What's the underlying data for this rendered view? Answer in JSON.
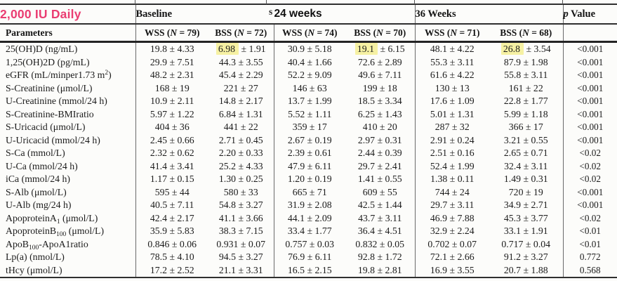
{
  "table": {
    "corner_label": "2,000 IU Daily",
    "corner_color": "#ea3d72",
    "fragment": "s",
    "highlight_color": "#f6f1a3",
    "param_header": "Parameters",
    "groups": [
      {
        "label": "Baseline"
      },
      {
        "label": "24 weeks"
      },
      {
        "label": "36 Weeks"
      }
    ],
    "p_header": {
      "italic": "p",
      "rest": " Value"
    },
    "sub_headers": [
      {
        "pre": "WSS (",
        "it": "N",
        "post": " = 79)"
      },
      {
        "pre": "BSS (",
        "it": "N",
        "post": " = 72)"
      },
      {
        "pre": "WSS (",
        "it": "N",
        "post": " = 74)"
      },
      {
        "pre": "BSS (",
        "it": "N",
        "post": " = 70)"
      },
      {
        "pre": "WSS (",
        "it": "N",
        "post": " = 71)"
      },
      {
        "pre": "BSS (",
        "it": "N",
        "post": " = 68)"
      }
    ],
    "rows": [
      {
        "param": [
          [
            "25(OH)D (ng/mL)",
            ""
          ]
        ],
        "values": [
          "19.8 ± 4.33",
          "6.98 ± 1.91",
          "30.9 ± 5.18",
          "19.1 ± 6.15",
          "48.1 ± 4.22",
          "26.8 ± 3.54"
        ],
        "p": "<0.001",
        "hl": [
          1,
          3,
          5
        ]
      },
      {
        "param": [
          [
            "1,25(OH)2D (pg/mL)",
            ""
          ]
        ],
        "values": [
          "29.9 ± 7.51",
          "44.3 ± 3.55",
          "40.4 ± 1.66",
          "72.6 ± 2.89",
          "55.3 ± 3.11",
          "87.9 ± 1.98"
        ],
        "p": "<0.001",
        "hl": []
      },
      {
        "param": [
          [
            "eGFR (mL/minper1.73 m",
            ""
          ],
          [
            "2",
            "sup"
          ],
          [
            ")",
            ""
          ]
        ],
        "values": [
          "48.2 ± 2.31",
          "45.4 ± 2.29",
          "52.2 ± 9.09",
          "49.6 ± 7.11",
          "61.6 ± 4.22",
          "55.8 ± 3.11"
        ],
        "p": "<0.001",
        "hl": []
      },
      {
        "param": [
          [
            "S-Creatinine (μmol/L)",
            ""
          ]
        ],
        "values": [
          "168 ± 19",
          "221 ± 27",
          "146 ± 63",
          "199 ± 18",
          "130 ± 13",
          "161 ± 22"
        ],
        "p": "<0.001",
        "hl": []
      },
      {
        "param": [
          [
            "U-Creatinine (mmol/24 h)",
            ""
          ]
        ],
        "values": [
          "10.9 ± 2.11",
          "14.8 ± 2.17",
          "13.7 ± 1.99",
          "18.5 ± 3.34",
          "17.6 ± 1.09",
          "22.8 ± 1.77"
        ],
        "p": "<0.001",
        "hl": []
      },
      {
        "param": [
          [
            "S-Creatinine-BMIratio",
            ""
          ]
        ],
        "values": [
          "5.97 ± 1.22",
          "6.84 ± 1.31",
          "5.52 ± 1.11",
          "6.25 ± 1.43",
          "5.01 ± 1.31",
          "5.99 ± 1.18"
        ],
        "p": "<0.001",
        "hl": []
      },
      {
        "param": [
          [
            "S-Uricacid (μmol/L)",
            ""
          ]
        ],
        "values": [
          "404 ± 36",
          "441 ± 22",
          "359 ± 17",
          "410 ± 20",
          "287 ± 32",
          "366 ± 17"
        ],
        "p": "<0.001",
        "hl": []
      },
      {
        "param": [
          [
            "U-Uricacid (mmol/24 h)",
            ""
          ]
        ],
        "values": [
          "2.45 ± 0.66",
          "2.71 ± 0.45",
          "2.67 ± 0.19",
          "2.97 ± 0.31",
          "2.91 ± 0.24",
          "3.21 ± 0.55"
        ],
        "p": "<0.001",
        "hl": []
      },
      {
        "param": [
          [
            "S-Ca (mmol/L)",
            ""
          ]
        ],
        "values": [
          "2.32 ± 0.62",
          "2.20 ± 0.33",
          "2.39 ± 0.61",
          "2.44 ± 0.39",
          "2.51 ± 0.16",
          "2.65 ± 0.71"
        ],
        "p": "<0.02",
        "hl": []
      },
      {
        "param": [
          [
            "U-Ca (mmol/24 h)",
            ""
          ]
        ],
        "values": [
          "41.4 ± 3.41",
          "25.2 ± 4.33",
          "47.9 ± 6.11",
          "29.7 ± 2.41",
          "52.4 ± 1.99",
          "32.4 ± 3.11"
        ],
        "p": "<0.02",
        "hl": []
      },
      {
        "param": [
          [
            "iCa (mmol/24 h)",
            ""
          ]
        ],
        "values": [
          "1.17 ± 0.15",
          "1.30 ± 0.25",
          "1.20 ± 0.19",
          "1.41 ± 0.55",
          "1.38 ± 0.11",
          "1.49 ± 0.31"
        ],
        "p": "<0.02",
        "hl": []
      },
      {
        "param": [
          [
            "S-Alb (μmol/L)",
            ""
          ]
        ],
        "values": [
          "595 ± 44",
          "580 ± 33",
          "665 ± 71",
          "609 ± 55",
          "744 ± 24",
          "720 ± 19"
        ],
        "p": "<0.001",
        "hl": []
      },
      {
        "param": [
          [
            "U-Alb (mg/24 h)",
            ""
          ]
        ],
        "values": [
          "40.5 ± 7.11",
          "54.8 ± 3.27",
          "31.9 ± 2.08",
          "42.5 ± 1.44",
          "29.7 ± 3.11",
          "34.9 ± 2.71"
        ],
        "p": "<0.001",
        "hl": []
      },
      {
        "param": [
          [
            "ApoproteinA",
            ""
          ],
          [
            "1",
            "sub"
          ],
          [
            " (μmol/L)",
            ""
          ]
        ],
        "values": [
          "42.4 ± 2.17",
          "41.1 ± 3.66",
          "44.1 ± 2.09",
          "43.7 ± 3.11",
          "46.9 ± 7.88",
          "45.3 ± 3.77"
        ],
        "p": "<0.02",
        "hl": []
      },
      {
        "param": [
          [
            "ApoproteinB",
            ""
          ],
          [
            "100",
            "sub"
          ],
          [
            " (μmol/L)",
            ""
          ]
        ],
        "values": [
          "35.9 ± 5.83",
          "38.3 ± 7.15",
          "33.4 ± 1.77",
          "36.4 ± 4.51",
          "32.9 ± 2.24",
          "33.1 ± 1.91"
        ],
        "p": "<0.01",
        "hl": []
      },
      {
        "param": [
          [
            "ApoB",
            ""
          ],
          [
            "100",
            "sub"
          ],
          [
            "-ApoA1ratio",
            ""
          ]
        ],
        "values": [
          "0.846 ± 0.06",
          "0.931 ± 0.07",
          "0.757 ± 0.03",
          "0.832 ± 0.05",
          "0.702 ± 0.07",
          "0.717 ± 0.04"
        ],
        "p": "<0.01",
        "hl": []
      },
      {
        "param": [
          [
            "Lp(a) (nmol/L)",
            ""
          ]
        ],
        "values": [
          "78.5 ± 4.10",
          "94.5 ± 3.27",
          "76.9 ± 6.11",
          "92.8 ± 1.72",
          "72.1 ± 2.66",
          "91.2 ± 3.27"
        ],
        "p": "0.772",
        "hl": []
      },
      {
        "param": [
          [
            "tHcy (μmol/L)",
            ""
          ]
        ],
        "values": [
          "17.2 ± 2.52",
          "21.1 ± 3.31",
          "16.5 ± 2.15",
          "19.8 ± 2.81",
          "16.9 ± 3.55",
          "20.7 ± 1.88"
        ],
        "p": "0.568",
        "hl": []
      }
    ]
  }
}
